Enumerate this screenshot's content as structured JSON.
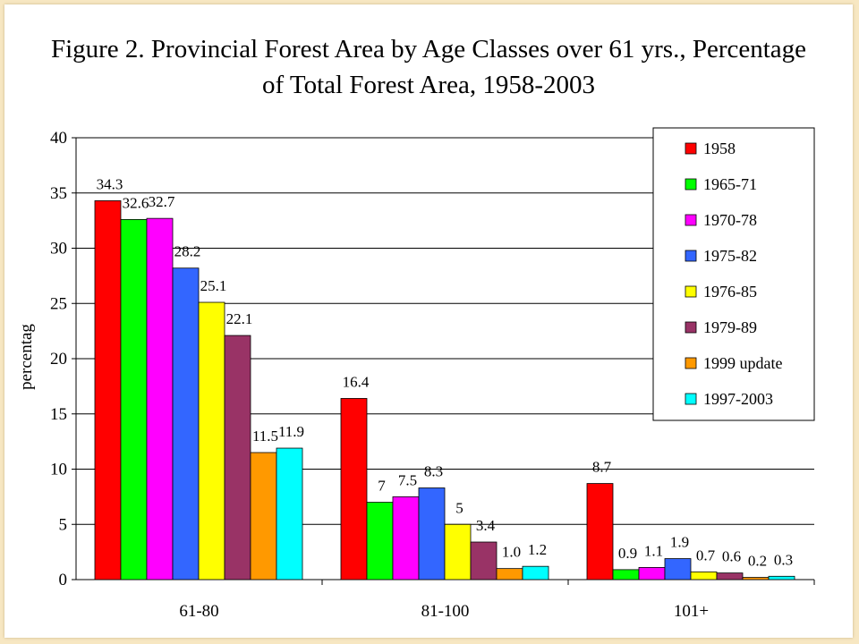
{
  "chart_data": {
    "type": "bar",
    "title": "Figure 2. Provincial Forest Area by Age Classes over 61 yrs., Percentage of Total Forest Area, 1958-2003",
    "title_lines": [
      "Figure 2. Provincial Forest Area by Age Classes over 61 yrs., Percentage",
      "of Total Forest Area, 1958-2003"
    ],
    "xlabel": "",
    "ylabel": "percentag",
    "ylim": [
      0,
      40
    ],
    "yticks": [
      0,
      5,
      10,
      15,
      20,
      25,
      30,
      35,
      40
    ],
    "grid": true,
    "legend_position": "top-right",
    "categories": [
      "61-80",
      "81-100",
      "101+"
    ],
    "series": [
      {
        "name": "1958",
        "color": "#ff0000",
        "values": [
          34.3,
          16.4,
          8.7
        ],
        "labels": [
          "34.3",
          "16.4",
          "8.7"
        ]
      },
      {
        "name": "1965-71",
        "color": "#00ff00",
        "values": [
          32.6,
          7,
          0.9
        ],
        "labels": [
          "32.6",
          "7",
          "0.9"
        ]
      },
      {
        "name": "1970-78",
        "color": "#ff00ff",
        "values": [
          32.7,
          7.5,
          1.1
        ],
        "labels": [
          "32.7",
          "7.5",
          "1.1"
        ]
      },
      {
        "name": "1975-82",
        "color": "#3366ff",
        "values": [
          28.2,
          8.3,
          1.9
        ],
        "labels": [
          "28.2",
          "8.3",
          "1.9"
        ]
      },
      {
        "name": "1976-85",
        "color": "#ffff00",
        "values": [
          25.1,
          5,
          0.7
        ],
        "labels": [
          "25.1",
          "5",
          "0.7"
        ]
      },
      {
        "name": "1979-89",
        "color": "#993366",
        "values": [
          22.1,
          3.4,
          0.6
        ],
        "labels": [
          "22.1",
          "3.4",
          "0.6"
        ]
      },
      {
        "name": "1999 update",
        "color": "#ff9900",
        "values": [
          11.5,
          1.0,
          0.2
        ],
        "labels": [
          "11.5",
          "1.0",
          "0.2"
        ]
      },
      {
        "name": "1997-2003",
        "color": "#00ffff",
        "values": [
          11.9,
          1.2,
          0.3
        ],
        "labels": [
          "11.9",
          "1.2",
          "0.3"
        ]
      }
    ]
  }
}
